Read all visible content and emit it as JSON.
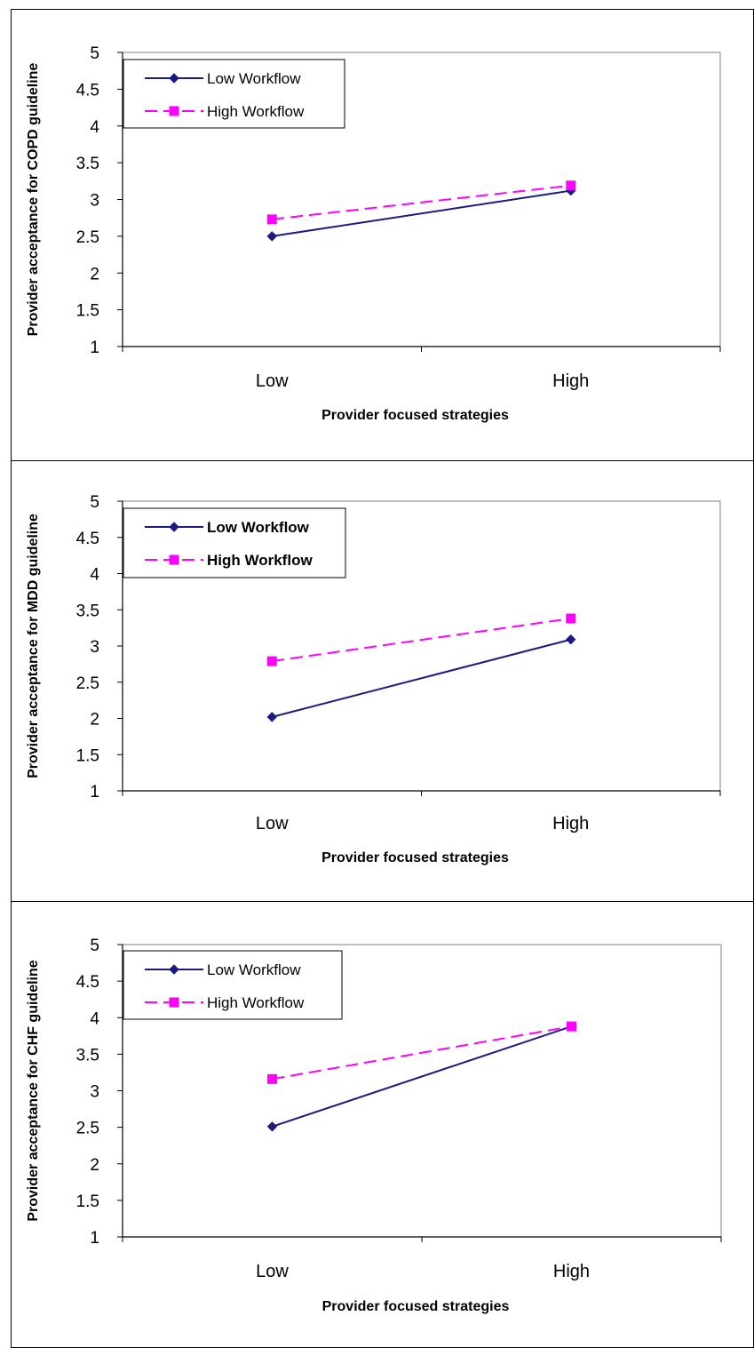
{
  "chart_data": [
    {
      "type": "line",
      "categories": [
        "Low",
        "High"
      ],
      "xlabel": "Provider focused strategies",
      "ylabel": "Provider acceptance for COPD guideline",
      "ylim": [
        1,
        5
      ],
      "yticks": [
        "1",
        "1.5",
        "2",
        "2.5",
        "3",
        "3.5",
        "4",
        "4.5",
        "5"
      ],
      "grid": false,
      "legend": {
        "placement": "top-left",
        "bold": false
      },
      "series": [
        {
          "name": "Low Workflow",
          "values": [
            2.5,
            3.12
          ],
          "color": "#1a1a80",
          "marker": "diamond",
          "dash": "solid"
        },
        {
          "name": "High Workflow",
          "values": [
            2.73,
            3.19
          ],
          "color": "#ff00ff",
          "marker": "square",
          "dash": "dashed"
        }
      ]
    },
    {
      "type": "line",
      "categories": [
        "Low",
        "High"
      ],
      "xlabel": "Provider focused strategies",
      "ylabel": "Provider acceptance for MDD guideline",
      "ylim": [
        1,
        5
      ],
      "yticks": [
        "1",
        "1.5",
        "2",
        "2.5",
        "3",
        "3.5",
        "4",
        "4.5",
        "5"
      ],
      "grid": false,
      "legend": {
        "placement": "top-left",
        "bold": true
      },
      "series": [
        {
          "name": "Low Workflow",
          "values": [
            2.02,
            3.09
          ],
          "color": "#1a1a80",
          "marker": "diamond",
          "dash": "solid"
        },
        {
          "name": "High Workflow",
          "values": [
            2.79,
            3.38
          ],
          "color": "#ff00ff",
          "marker": "square",
          "dash": "dashed"
        }
      ]
    },
    {
      "type": "line",
      "categories": [
        "Low",
        "High"
      ],
      "xlabel": "Provider focused strategies",
      "ylabel": "Provider acceptance for CHF guideline",
      "ylim": [
        1,
        5
      ],
      "yticks": [
        "1",
        "1.5",
        "2",
        "2.5",
        "3",
        "3.5",
        "4",
        "4.5",
        "5"
      ],
      "grid": false,
      "legend": {
        "placement": "top-left",
        "bold": false
      },
      "series": [
        {
          "name": "Low Workflow",
          "values": [
            2.51,
            3.88
          ],
          "color": "#1a1a80",
          "marker": "diamond",
          "dash": "solid"
        },
        {
          "name": "High Workflow",
          "values": [
            3.16,
            3.88
          ],
          "color": "#ff00ff",
          "marker": "square",
          "dash": "dashed"
        }
      ]
    }
  ]
}
